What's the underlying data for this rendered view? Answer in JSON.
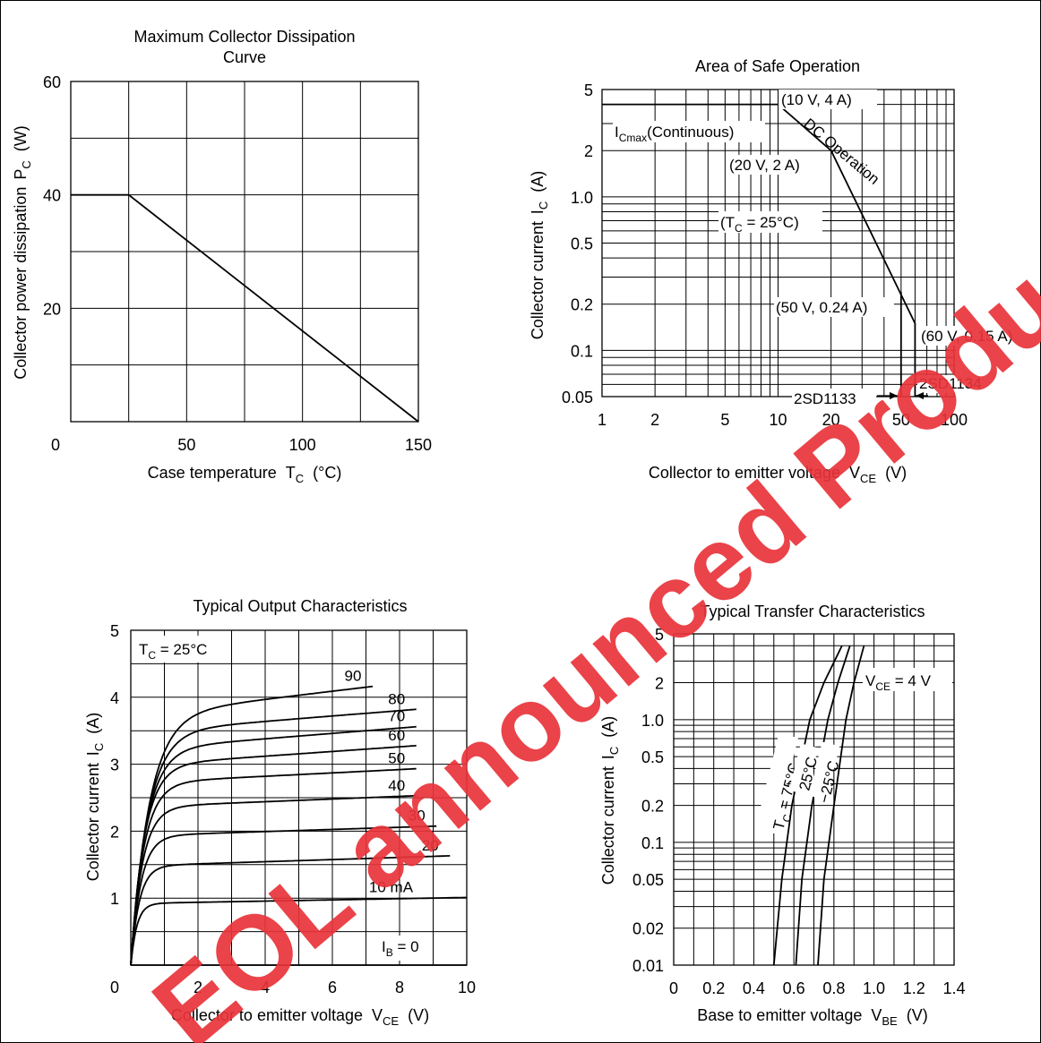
{
  "watermark": "EOL announced Product",
  "charts": {
    "dissipation": {
      "title_line1": "Maximum Collector Dissipation",
      "title_line2": "Curve",
      "ylabel": "Collector power dissipation",
      "ylabel_sym": "P",
      "ylabel_sub": "C",
      "ylabel_unit": "(W)",
      "xlabel": "Case temperature",
      "xlabel_sym": "T",
      "xlabel_sub": "C",
      "xlabel_unit": "(°C)"
    },
    "aso": {
      "title": "Area of Safe Operation",
      "ylabel": "Collector current",
      "ylabel_sym": "I",
      "ylabel_sub": "C",
      "ylabel_unit": "(A)",
      "xlabel": "Collector to emitter voltage",
      "xlabel_sym": "V",
      "xlabel_sub": "CE",
      "xlabel_unit": "(V)",
      "ann_icmax_sym": "I",
      "ann_icmax_sub": "Cmax",
      "ann_icmax_rest": "(Continuous)",
      "ann_p1": "(10 V, 4 A)",
      "ann_p2": "(20 V, 2 A)",
      "ann_dc": "DC Operation",
      "ann_tc_pre": "(T",
      "ann_tc_sub": "C",
      "ann_tc_post": " = 25°C)",
      "ann_p3": "(50 V, 0.24 A)",
      "ann_p4": "(60 V, 0.15 A)",
      "ann_2sd1133": "2SD1133",
      "ann_2sd1134": "2SD1134"
    },
    "output": {
      "title": "Typical Output Characteristics",
      "ylabel": "Collector current",
      "ylabel_sym": "I",
      "ylabel_sub": "C",
      "ylabel_unit": "(A)",
      "xlabel": "Collector to emitter voltage",
      "xlabel_sym": "V",
      "xlabel_sub": "CE",
      "xlabel_unit": "(V)",
      "ann_tc_pre": "T",
      "ann_tc_sub": "C",
      "ann_tc_post": " = 25°C",
      "ann_ib_pre": "I",
      "ann_ib_sub": "B",
      "ann_ib_post": " = 0"
    },
    "transfer": {
      "title": "Typical Transfer Characteristics",
      "ylabel": "Collector current",
      "ylabel_sym": "I",
      "ylabel_sub": "C",
      "ylabel_unit": "(A)",
      "xlabel": "Base to emitter voltage",
      "xlabel_sym": "V",
      "xlabel_sub": "BE",
      "xlabel_unit": "(V)",
      "ann_vce_pre": "V",
      "ann_vce_sub": "CE",
      "ann_vce_post": " = 4 V",
      "ann_t75_pre": "T",
      "ann_t75_sub": "C",
      "ann_t75_post": " = 75°C",
      "ann_t25": "25°C",
      "ann_tm25": "−25°C"
    }
  },
  "chart_data": [
    {
      "type": "line",
      "title": "Maximum Collector Dissipation Curve",
      "xlabel": "Case temperature TC (°C)",
      "ylabel": "Collector power dissipation PC (W)",
      "xlim": [
        0,
        150
      ],
      "ylim": [
        0,
        60
      ],
      "x_ticks": [
        "0",
        "50",
        "100",
        "150"
      ],
      "y_ticks": [
        "20",
        "40",
        "60"
      ],
      "grid": true,
      "series": [
        {
          "x": [
            0,
            25,
            150
          ],
          "y": [
            40,
            40,
            0
          ]
        }
      ]
    },
    {
      "type": "line",
      "title": "Area of Safe Operation",
      "xlabel": "Collector to emitter voltage VCE (V)",
      "ylabel": "Collector current IC (A)",
      "xscale": "log",
      "yscale": "log",
      "xlim": [
        1,
        100
      ],
      "ylim": [
        0.05,
        5
      ],
      "x_ticks": [
        "1",
        "2",
        "5",
        "10",
        "20",
        "50",
        "100"
      ],
      "y_ticks": [
        "0.05",
        "0.1",
        "0.2",
        "0.5",
        "1.0",
        "2",
        "5"
      ],
      "grid": true,
      "series": [
        {
          "name": "2SD1134",
          "x": [
            1,
            10,
            20,
            60,
            60
          ],
          "y": [
            4,
            4,
            2,
            0.15,
            0.05
          ]
        },
        {
          "name": "2SD1133",
          "x": [
            50,
            50
          ],
          "y": [
            0.24,
            0.05
          ]
        }
      ]
    },
    {
      "type": "line",
      "title": "Typical Output Characteristics",
      "xlabel": "Collector to emitter voltage VCE (V)",
      "ylabel": "Collector current IC (A)",
      "xlim": [
        0,
        10
      ],
      "ylim": [
        0,
        5
      ],
      "x_ticks": [
        "0",
        "2",
        "4",
        "6",
        "8",
        "10"
      ],
      "y_ticks": [
        "0",
        "1",
        "2",
        "3",
        "4",
        "5"
      ],
      "grid": true,
      "series": [
        {
          "name": "90",
          "end_x": 7.2,
          "sat": 3.73,
          "slope": 0.06,
          "knee": 0.55
        },
        {
          "name": "80",
          "end_x": 8.5,
          "sat": 3.48,
          "slope": 0.04,
          "knee": 0.5
        },
        {
          "name": "70",
          "end_x": 8.5,
          "sat": 3.22,
          "slope": 0.04,
          "knee": 0.45
        },
        {
          "name": "60",
          "end_x": 8.5,
          "sat": 2.98,
          "slope": 0.035,
          "knee": 0.4
        },
        {
          "name": "50",
          "end_x": 8.5,
          "sat": 2.72,
          "slope": 0.025,
          "knee": 0.38
        },
        {
          "name": "40",
          "end_x": 8.5,
          "sat": 2.36,
          "slope": 0.02,
          "knee": 0.34
        },
        {
          "name": "30",
          "end_x": 9.1,
          "sat": 1.93,
          "slope": 0.016,
          "knee": 0.3
        },
        {
          "name": "20",
          "end_x": 9.5,
          "sat": 1.48,
          "slope": 0.016,
          "knee": 0.25
        },
        {
          "name": "10 mA",
          "end_x": 10,
          "sat": 0.92,
          "slope": 0.009,
          "knee": 0.18
        },
        {
          "name": "IB = 0",
          "end_x": 10,
          "sat": 0,
          "slope": 0,
          "knee": 0.1
        }
      ]
    },
    {
      "type": "line",
      "title": "Typical Transfer Characteristics",
      "xlabel": "Base to emitter voltage VBE (V)",
      "ylabel": "Collector current IC (A)",
      "yscale": "log",
      "xlim": [
        0,
        1.4
      ],
      "ylim": [
        0.01,
        5
      ],
      "x_ticks": [
        "0",
        "0.2",
        "0.4",
        "0.6",
        "0.8",
        "1.0",
        "1.2",
        "1.4"
      ],
      "y_ticks": [
        "0.01",
        "0.02",
        "0.05",
        "0.1",
        "0.2",
        "0.5",
        "1.0",
        "2",
        "5"
      ],
      "grid": true,
      "series": [
        {
          "name": "TC = 75°C",
          "x": [
            0.5,
            0.54,
            0.59,
            0.68,
            0.75,
            0.84
          ],
          "y": [
            0.01,
            0.05,
            0.2,
            1.0,
            2,
            4
          ]
        },
        {
          "name": "25°C",
          "x": [
            0.61,
            0.64,
            0.69,
            0.77,
            0.82,
            0.88
          ],
          "y": [
            0.01,
            0.05,
            0.2,
            1.0,
            2,
            4
          ]
        },
        {
          "name": "−25°C",
          "x": [
            0.72,
            0.75,
            0.8,
            0.86,
            0.9,
            0.95
          ],
          "y": [
            0.01,
            0.05,
            0.2,
            1.0,
            2,
            4
          ]
        }
      ]
    }
  ]
}
